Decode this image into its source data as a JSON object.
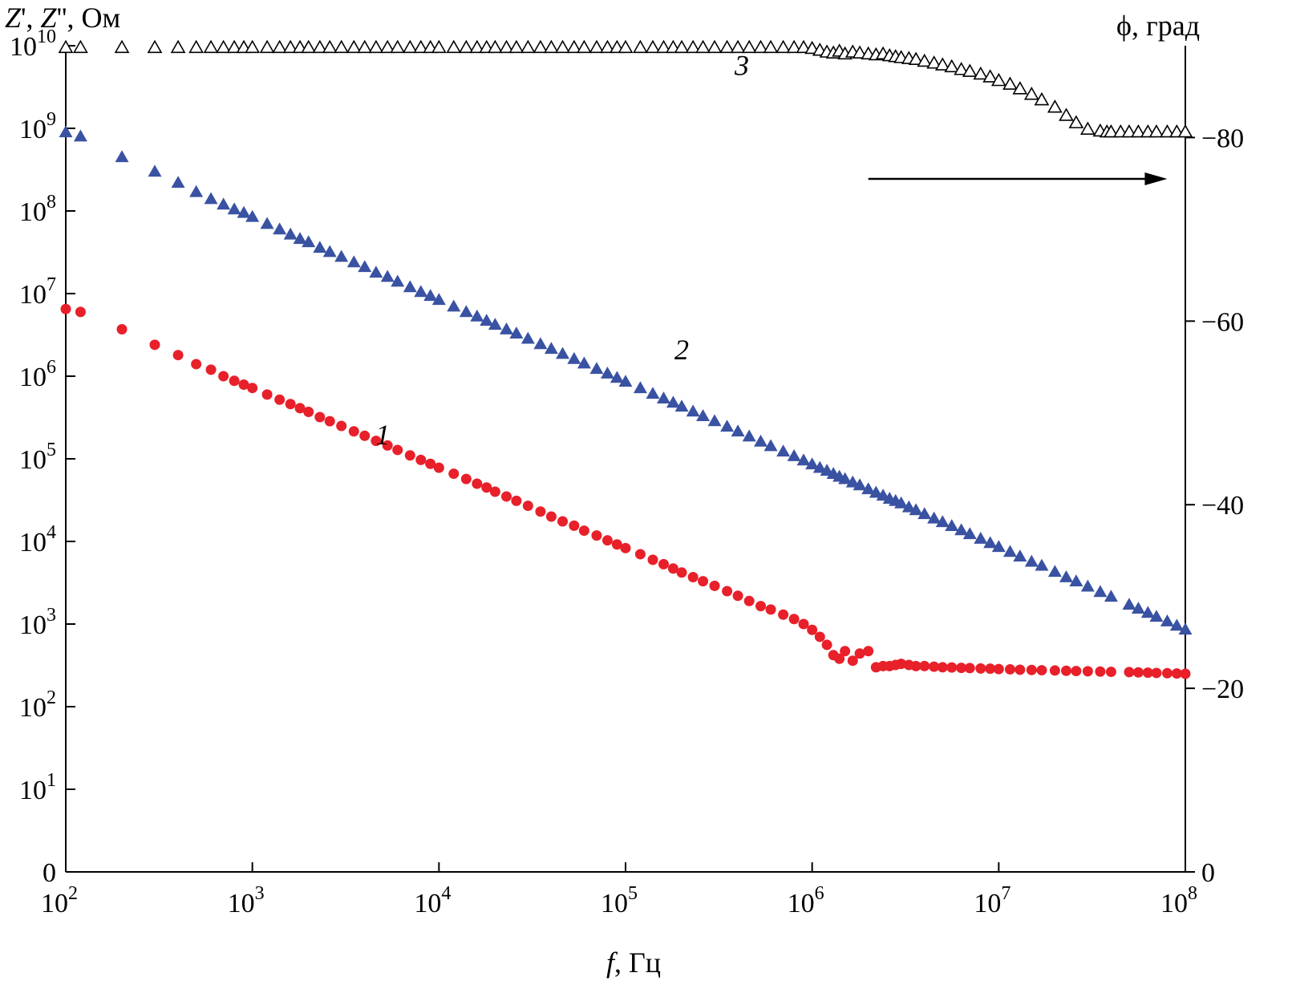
{
  "chart_data": {
    "type": "scatter",
    "x_scale": "log",
    "y_scale": "log",
    "xlim": [
      100,
      100000000
    ],
    "ylim": [
      1,
      10000000000
    ],
    "y2lim": [
      0,
      -90
    ],
    "xlabel_italic": "f",
    "xlabel_rest": ", Гц",
    "ylabel_parts": [
      {
        "text": "Z",
        "italic": true
      },
      {
        "text": "', ",
        "italic": false
      },
      {
        "text": "Z",
        "italic": true
      },
      {
        "text": "'', Ом",
        "italic": false
      }
    ],
    "y2label": "ϕ, град",
    "x_ticks": [
      {
        "base": "10",
        "exp": "2",
        "value": 100
      },
      {
        "base": "10",
        "exp": "3",
        "value": 1000
      },
      {
        "base": "10",
        "exp": "4",
        "value": 10000
      },
      {
        "base": "10",
        "exp": "5",
        "value": 100000
      },
      {
        "base": "10",
        "exp": "6",
        "value": 1000000
      },
      {
        "base": "10",
        "exp": "7",
        "value": 10000000
      },
      {
        "base": "10",
        "exp": "8",
        "value": 100000000
      }
    ],
    "y_ticks": [
      {
        "base": "0",
        "exp": "",
        "value": 1
      },
      {
        "base": "10",
        "exp": "1",
        "value": 10
      },
      {
        "base": "10",
        "exp": "2",
        "value": 100
      },
      {
        "base": "10",
        "exp": "3",
        "value": 1000
      },
      {
        "base": "10",
        "exp": "4",
        "value": 10000
      },
      {
        "base": "10",
        "exp": "5",
        "value": 100000
      },
      {
        "base": "10",
        "exp": "6",
        "value": 1000000
      },
      {
        "base": "10",
        "exp": "7",
        "value": 10000000
      },
      {
        "base": "10",
        "exp": "8",
        "value": 100000000
      },
      {
        "base": "10",
        "exp": "9",
        "value": 1000000000
      },
      {
        "base": "10",
        "exp": "10",
        "value": 10000000000
      }
    ],
    "y2_ticks": [
      {
        "label": "0",
        "value": 0
      },
      {
        "label": "−20",
        "value": -20
      },
      {
        "label": "−40",
        "value": -40
      },
      {
        "label": "−60",
        "value": -60
      },
      {
        "label": "−80",
        "value": -80
      }
    ],
    "series": [
      {
        "label": "1",
        "axis": "left",
        "marker": "filled-circle",
        "color": "#e8202a",
        "x": [
          100,
          120,
          200,
          300,
          400,
          500,
          600,
          700,
          800,
          900,
          1000,
          1200,
          1400,
          1600,
          1800,
          2000,
          2300,
          2600,
          3000,
          3500,
          4000,
          4600,
          5300,
          6000,
          7000,
          8000,
          9000,
          10000,
          12000,
          14000,
          16000,
          18000,
          20000,
          23000,
          26000,
          30000,
          35000,
          40000,
          46000,
          53000,
          60000,
          70000,
          80000,
          90000,
          100000,
          120000,
          140000,
          160000,
          180000,
          200000,
          230000,
          260000,
          300000,
          350000,
          400000,
          460000,
          530000,
          600000,
          700000,
          800000,
          900000,
          1000000,
          1100000,
          1200000,
          1300000,
          1400000,
          1500000,
          1650000,
          1800000,
          2000000,
          2200000,
          2400000,
          2600000,
          2800000,
          3000000,
          3300000,
          3600000,
          4000000,
          4500000,
          5000000,
          5600000,
          6300000,
          7000000,
          8000000,
          9000000,
          10000000,
          11500000,
          13000000,
          15000000,
          17000000,
          20000000,
          23000000,
          26000000,
          30000000,
          35000000,
          40000000,
          50000000,
          56000000,
          63000000,
          70000000,
          80000000,
          90000000,
          100000000
        ],
        "y": [
          6500000,
          6000000,
          3700000,
          2400000,
          1800000,
          1400000,
          1200000,
          1000000,
          880000,
          790000,
          720000,
          600000,
          520000,
          460000,
          410000,
          370000,
          320000,
          285000,
          250000,
          215000,
          190000,
          165000,
          145000,
          128000,
          110000,
          97000,
          87000,
          78000,
          66000,
          57000,
          50000,
          45000,
          40000,
          35000,
          31000,
          27000,
          23000,
          20000,
          17500,
          15500,
          13500,
          11800,
          10300,
          9200,
          8300,
          7000,
          6000,
          5300,
          4700,
          4200,
          3700,
          3300,
          2900,
          2500,
          2200,
          1900,
          1650,
          1500,
          1300,
          1150,
          1000,
          850,
          700,
          560,
          420,
          380,
          470,
          360,
          440,
          470,
          300,
          310,
          310,
          320,
          330,
          320,
          310,
          310,
          305,
          300,
          298,
          295,
          293,
          290,
          288,
          285,
          283,
          280,
          278,
          276,
          274,
          272,
          270,
          268,
          266,
          264,
          262,
          260,
          258,
          256,
          254,
          252,
          250
        ]
      },
      {
        "label": "2",
        "axis": "left",
        "marker": "filled-triangle",
        "color": "#3a52a2",
        "x": [
          100,
          120,
          200,
          300,
          400,
          500,
          600,
          700,
          800,
          900,
          1000,
          1200,
          1400,
          1600,
          1800,
          2000,
          2300,
          2600,
          3000,
          3500,
          4000,
          4600,
          5300,
          6000,
          7000,
          8000,
          9000,
          10000,
          12000,
          14000,
          16000,
          18000,
          20000,
          23000,
          26000,
          30000,
          35000,
          40000,
          46000,
          53000,
          60000,
          70000,
          80000,
          90000,
          100000,
          120000,
          140000,
          160000,
          180000,
          200000,
          230000,
          260000,
          300000,
          350000,
          400000,
          460000,
          530000,
          600000,
          700000,
          800000,
          900000,
          1000000,
          1100000,
          1200000,
          1300000,
          1400000,
          1500000,
          1650000,
          1800000,
          2000000,
          2200000,
          2400000,
          2600000,
          2800000,
          3000000,
          3300000,
          3600000,
          4000000,
          4500000,
          5000000,
          5600000,
          6300000,
          7000000,
          8000000,
          9000000,
          10000000,
          11500000,
          13000000,
          15000000,
          17000000,
          20000000,
          23000000,
          26000000,
          30000000,
          35000000,
          40000000,
          50000000,
          56000000,
          63000000,
          70000000,
          80000000,
          90000000,
          100000000
        ],
        "y": [
          900000000,
          800000000,
          450000000,
          300000000,
          220000000,
          170000000,
          140000000,
          120000000,
          105000000,
          95000000,
          85000000,
          70000000,
          60000000,
          52000000,
          46000000,
          42000000,
          36000000,
          32000000,
          28000000,
          24000000,
          21000000,
          18000000,
          16000000,
          14000000,
          12000000,
          10500000,
          9400000,
          8400000,
          7000000,
          6000000,
          5300000,
          4700000,
          4200000,
          3700000,
          3300000,
          2850000,
          2450000,
          2150000,
          1870000,
          1620000,
          1430000,
          1230000,
          1080000,
          960000,
          860000,
          720000,
          615000,
          540000,
          480000,
          430000,
          375000,
          330000,
          287000,
          246000,
          215000,
          187000,
          162000,
          143000,
          123000,
          108000,
          96000,
          86000,
          78000,
          72000,
          66000,
          61000,
          57000,
          52000,
          48000,
          43000,
          39000,
          36000,
          33000,
          31000,
          29000,
          26000,
          24000,
          21500,
          19000,
          17200,
          15400,
          13700,
          12300,
          10800,
          9600,
          8600,
          7500,
          6600,
          5700,
          5100,
          4300,
          3700,
          3300,
          2850,
          2450,
          2150,
          1720,
          1540,
          1370,
          1230,
          1080,
          960,
          860
        ]
      },
      {
        "label": "3",
        "axis": "right",
        "marker": "open-triangle",
        "color": "#000000",
        "x": [
          100,
          120,
          200,
          300,
          400,
          500,
          600,
          700,
          800,
          900,
          1000,
          1200,
          1400,
          1600,
          1800,
          2000,
          2300,
          2600,
          3000,
          3500,
          4000,
          4600,
          5300,
          6000,
          7000,
          8000,
          9000,
          10000,
          12000,
          14000,
          16000,
          18000,
          20000,
          23000,
          26000,
          30000,
          35000,
          40000,
          46000,
          53000,
          60000,
          70000,
          80000,
          90000,
          100000,
          120000,
          140000,
          160000,
          180000,
          200000,
          230000,
          260000,
          300000,
          350000,
          400000,
          460000,
          530000,
          600000,
          700000,
          800000,
          900000,
          1000000,
          1100000,
          1200000,
          1300000,
          1400000,
          1500000,
          1650000,
          1800000,
          2000000,
          2200000,
          2400000,
          2600000,
          2800000,
          3000000,
          3300000,
          3600000,
          4000000,
          4500000,
          5000000,
          5600000,
          6300000,
          7000000,
          8000000,
          9000000,
          10000000,
          11500000,
          13000000,
          15000000,
          17000000,
          20000000,
          23000000,
          26000000,
          30000000,
          35000000,
          38000000,
          40000000,
          45000000,
          50000000,
          56000000,
          63000000,
          70000000,
          80000000,
          90000000,
          100000000
        ],
        "y": [
          -89.8,
          -89.8,
          -89.8,
          -89.8,
          -89.8,
          -89.8,
          -89.8,
          -89.8,
          -89.8,
          -89.8,
          -89.8,
          -89.8,
          -89.8,
          -89.8,
          -89.8,
          -89.8,
          -89.8,
          -89.8,
          -89.8,
          -89.8,
          -89.8,
          -89.8,
          -89.8,
          -89.8,
          -89.8,
          -89.8,
          -89.8,
          -89.8,
          -89.8,
          -89.8,
          -89.8,
          -89.8,
          -89.8,
          -89.8,
          -89.8,
          -89.8,
          -89.8,
          -89.8,
          -89.8,
          -89.8,
          -89.8,
          -89.8,
          -89.8,
          -89.8,
          -89.8,
          -89.8,
          -89.8,
          -89.8,
          -89.8,
          -89.8,
          -89.8,
          -89.8,
          -89.8,
          -89.8,
          -89.8,
          -89.8,
          -89.8,
          -89.8,
          -89.8,
          -89.8,
          -89.8,
          -89.7,
          -89.5,
          -89.3,
          -89.2,
          -89.4,
          -89.1,
          -89.3,
          -89.2,
          -89.1,
          -89.0,
          -89.1,
          -88.9,
          -88.8,
          -88.7,
          -88.6,
          -88.5,
          -88.3,
          -88.1,
          -87.9,
          -87.7,
          -87.4,
          -87.2,
          -86.9,
          -86.6,
          -86.2,
          -85.8,
          -85.3,
          -84.7,
          -84.1,
          -83.3,
          -82.4,
          -81.6,
          -80.9,
          -80.7,
          -80.6,
          -80.6,
          -80.6,
          -80.6,
          -80.6,
          -80.6,
          -80.6,
          -80.6,
          -80.6,
          -80.6
        ]
      }
    ],
    "annotations": [
      {
        "text": "1",
        "x": 5000,
        "y": 150000
      },
      {
        "text": "2",
        "x": 200000,
        "y": 1600000
      },
      {
        "text": "3",
        "x": 420000,
        "y": -86.8
      }
    ],
    "arrow": {
      "from_x": 2000000,
      "to_x": 80000000,
      "y2": -75.5,
      "direction": "right"
    }
  }
}
